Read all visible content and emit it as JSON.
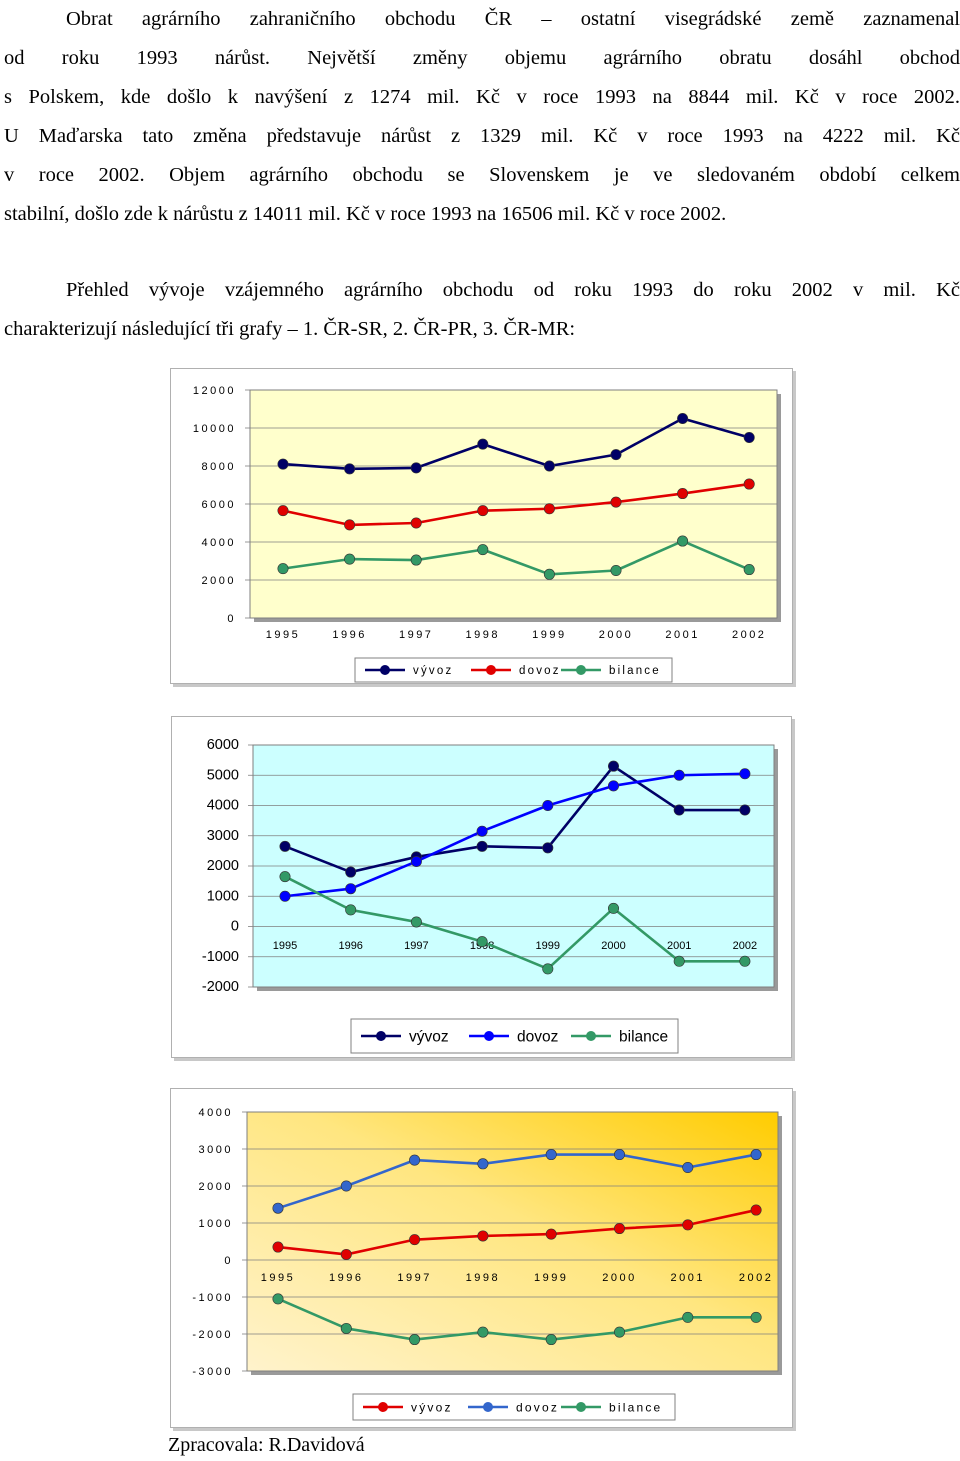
{
  "paragraph1": {
    "lines": [
      "Obrat agrárního zahraničního obchodu ČR – ostatní visegrádské země zaznamenal",
      "od roku 1993 nárůst. Největší změny objemu agrárního obratu dosáhl obchod",
      "s Polskem, kde došlo k navýšení z 1274 mil. Kč v roce 1993 na 8844 mil. Kč v roce 2002.",
      "U Maďarska tato změna představuje nárůst z 1329 mil. Kč v roce 1993 na 4222 mil. Kč",
      "v roce 2002. Objem agrárního obchodu se Slovenskem je ve sledovaném období celkem",
      "stabilní, došlo zde k nárůstu z 14011 mil. Kč v roce 1993 na 16506 mil. Kč v roce 2002."
    ]
  },
  "paragraph2": {
    "lines": [
      "Přehled vývoje vzájemného agrárního obchodu od roku 1993 do roku 2002 v mil. Kč",
      "charakterizují následující tři grafy – 1. ČR-SR, 2. ČR-PR, 3. ČR-MR:"
    ]
  },
  "credit": "Zpracovala: R.Davidová",
  "chart_data": [
    {
      "type": "line",
      "categories": [
        "1995",
        "1996",
        "1997",
        "1998",
        "1999",
        "2000",
        "2001",
        "2002"
      ],
      "series": [
        {
          "name": "vývoz",
          "color": "#000066",
          "values": [
            8100,
            7850,
            7900,
            9150,
            8000,
            8600,
            10500,
            9500
          ]
        },
        {
          "name": "dovoz",
          "color": "#e00000",
          "values": [
            5650,
            4900,
            5000,
            5650,
            5750,
            6100,
            6550,
            7050
          ]
        },
        {
          "name": "bilance",
          "color": "#339966",
          "values": [
            2600,
            3100,
            3050,
            3600,
            2300,
            2500,
            4050,
            2550
          ]
        }
      ],
      "ylim": [
        0,
        12000
      ],
      "yticks": [
        "0",
        "2000",
        "4000",
        "6000",
        "8000",
        "10000",
        "12000"
      ],
      "legend_position": "bottom",
      "plot_bg": "#ffffcc",
      "grid": "horizontal"
    },
    {
      "type": "line",
      "categories": [
        "1995",
        "1996",
        "1997",
        "1998",
        "1999",
        "2000",
        "2001",
        "2002"
      ],
      "series": [
        {
          "name": "vývoz",
          "color": "#000066",
          "values": [
            2650,
            1800,
            2300,
            2650,
            2600,
            5300,
            3850,
            3850
          ]
        },
        {
          "name": "dovoz",
          "color": "#0000ff",
          "values": [
            1000,
            1250,
            2150,
            3150,
            4000,
            4650,
            5000,
            5050
          ]
        },
        {
          "name": "bilance",
          "color": "#339966",
          "values": [
            1650,
            550,
            150,
            -500,
            -1400,
            600,
            -1150,
            -1150
          ]
        }
      ],
      "ylim": [
        -2000,
        6000
      ],
      "yticks": [
        "-2000",
        "-1000",
        "0",
        "1000",
        "2000",
        "3000",
        "4000",
        "5000",
        "6000"
      ],
      "legend_position": "bottom",
      "plot_bg": "#ccffff",
      "grid": "horizontal"
    },
    {
      "type": "line",
      "categories": [
        "1995",
        "1996",
        "1997",
        "1998",
        "1999",
        "2000",
        "2001",
        "2002"
      ],
      "series": [
        {
          "name": "vývoz",
          "color": "#e00000",
          "values": [
            350,
            150,
            550,
            650,
            700,
            850,
            950,
            1350
          ]
        },
        {
          "name": "dovoz",
          "color": "#3366cc",
          "values": [
            1400,
            2000,
            2700,
            2600,
            2850,
            2850,
            2500,
            2850
          ]
        },
        {
          "name": "bilance",
          "color": "#339966",
          "values": [
            -1050,
            -1850,
            -2150,
            -1950,
            -2150,
            -1950,
            -1550,
            -1550
          ]
        }
      ],
      "ylim": [
        -3000,
        4000
      ],
      "yticks": [
        "-3000",
        "-2000",
        "-1000",
        "0",
        "1000",
        "2000",
        "3000",
        "4000"
      ],
      "legend_position": "bottom",
      "plot_bg_gradient": [
        "#fff3cc",
        "#ffcc00"
      ],
      "grid": "horizontal"
    }
  ]
}
